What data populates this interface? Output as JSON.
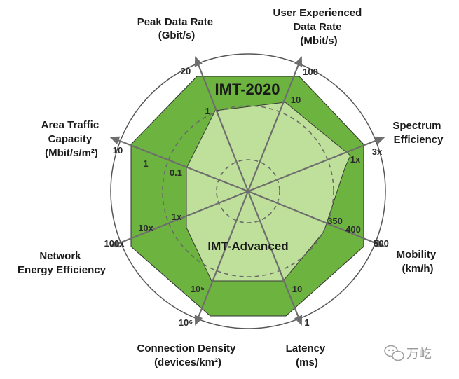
{
  "diagram": {
    "outer_label": "IMT-2020",
    "inner_label": "IMT-Advanced",
    "axes": [
      {
        "name_lines": [
          "Peak Data Rate",
          "(Gbit/s)"
        ],
        "outer_value": "20",
        "inner_value": "1"
      },
      {
        "name_lines": [
          "User Experienced",
          "Data Rate",
          "(Mbit/s)"
        ],
        "outer_value": "100",
        "inner_value": "10"
      },
      {
        "name_lines": [
          "Spectrum",
          "Efficiency"
        ],
        "outer_value": "3x",
        "inner_value": "1x"
      },
      {
        "name_lines": [
          "Mobility",
          "(km/h)"
        ],
        "outer_value": "500",
        "mid_value": "400",
        "inner_value": "350"
      },
      {
        "name_lines": [
          "Latency",
          "(ms)"
        ],
        "outer_value": "1",
        "inner_value": "10"
      },
      {
        "name_lines": [
          "Connection Density",
          "(devices/km²)"
        ],
        "outer_value": "10⁶",
        "inner_value": "10⁵"
      },
      {
        "name_lines": [
          "Network",
          "Energy Efficiency"
        ],
        "outer_value": "100x",
        "mid_value": "10x",
        "inner_value": "1x"
      },
      {
        "name_lines": [
          "Area Traffic",
          "Capacity",
          "(Mbit/s/m²)"
        ],
        "outer_value": "10",
        "mid_value": "1",
        "inner_value": "0.1"
      }
    ]
  },
  "watermark": {
    "icon": "wechat-icon",
    "text": "万屹"
  },
  "colors": {
    "outer_fill": "#6db33f",
    "inner_fill": "#bfe09a",
    "axis": "#6e6e6e",
    "ring": "#555555",
    "dashed": "#6a6a6a"
  }
}
